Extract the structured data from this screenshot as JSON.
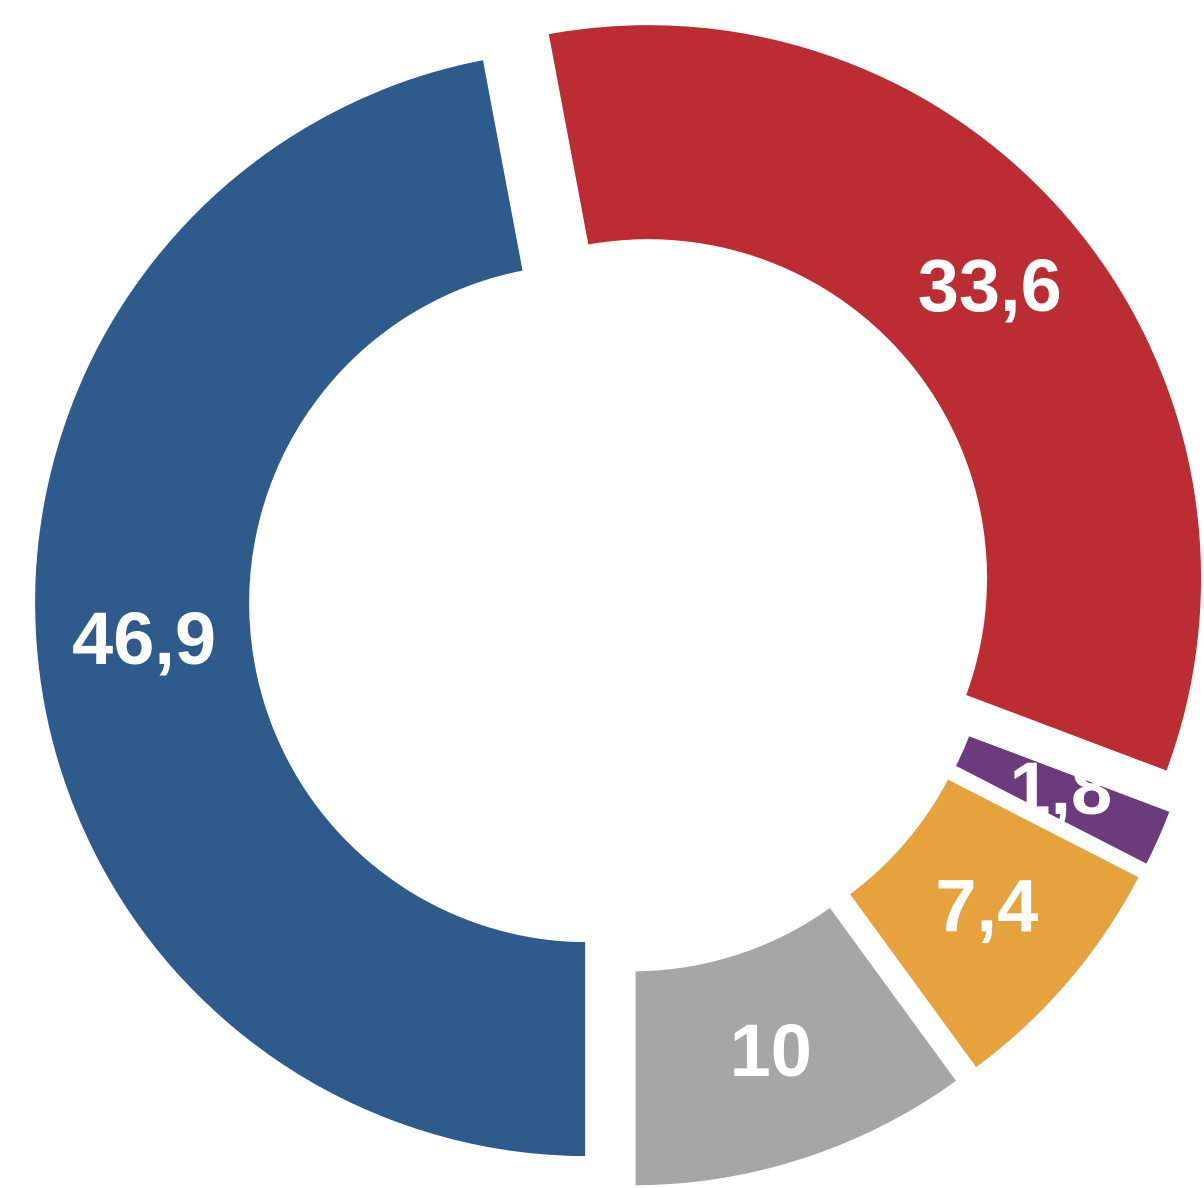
{
  "chart_data": {
    "type": "donut",
    "categories": [
      null,
      null,
      null,
      null,
      null
    ],
    "values": [
      46.9,
      33.6,
      1.8,
      7.4,
      10
    ],
    "value_labels": [
      "46,9",
      "33,6",
      "1,8",
      "7,4",
      "10"
    ],
    "colors": [
      "#2e5a8c",
      "#bb2d33",
      "#6b3b7d",
      "#e6a23c",
      "#a6a6a6"
    ]
  }
}
